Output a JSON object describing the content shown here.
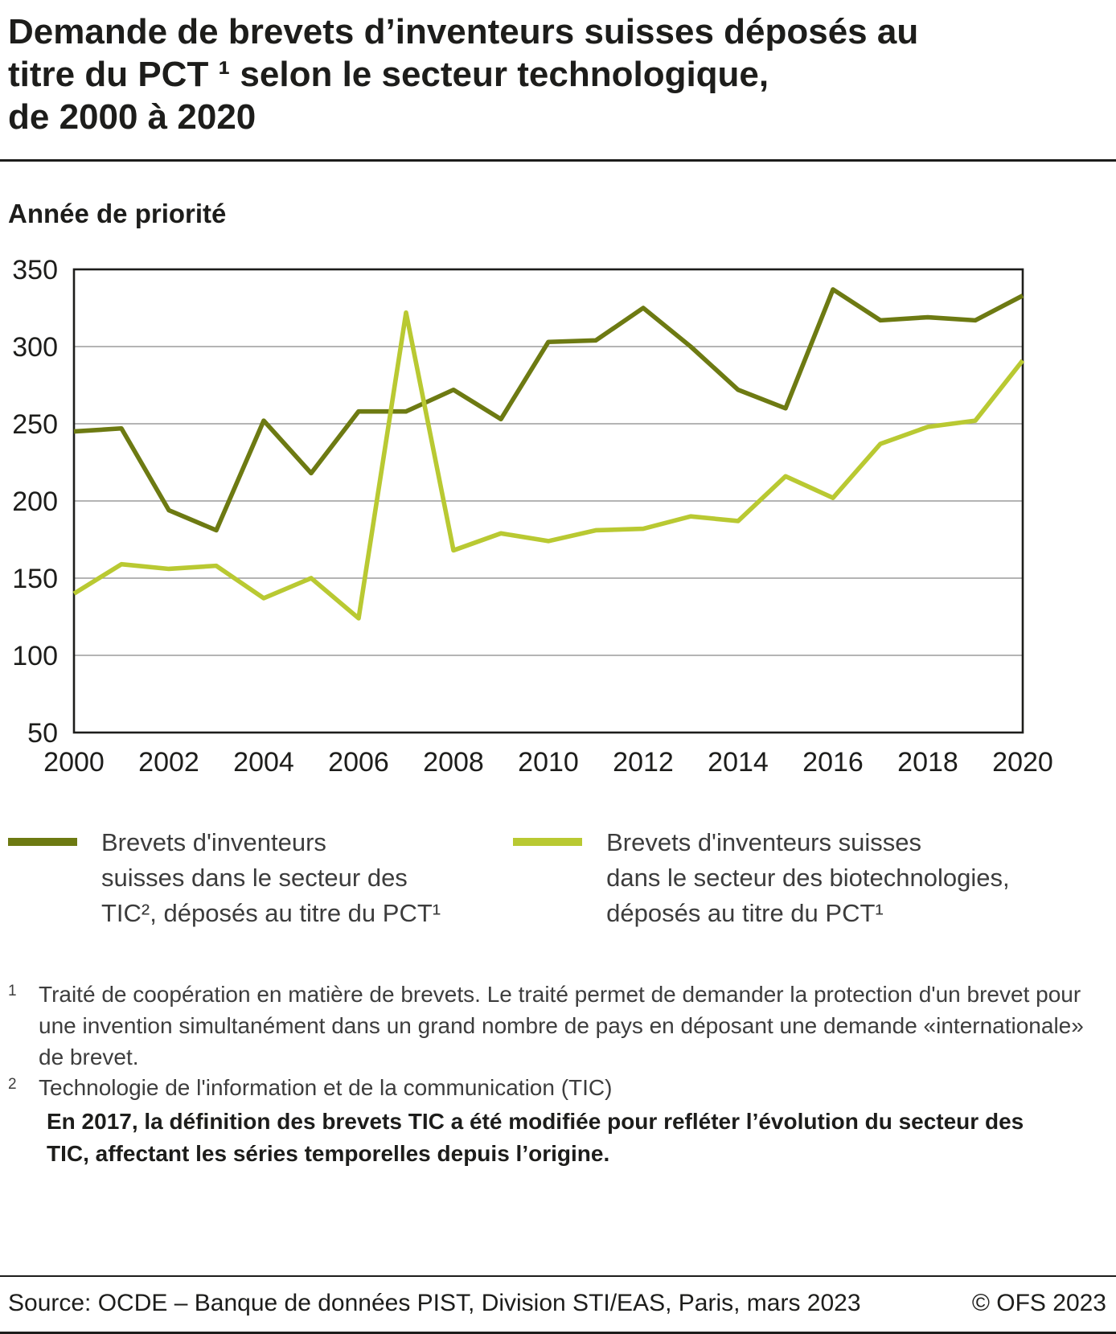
{
  "header": {
    "title": "Demande de brevets d’inventeurs suisses déposés au\ntitre du PCT ¹ selon le secteur technologique,\nde 2000 à 2020"
  },
  "chart_data": {
    "type": "line",
    "axis_title": "Année de priorité",
    "x": [
      2000,
      2001,
      2002,
      2003,
      2004,
      2005,
      2006,
      2007,
      2008,
      2009,
      2010,
      2011,
      2012,
      2013,
      2014,
      2015,
      2016,
      2017,
      2018,
      2019,
      2020
    ],
    "xticks": [
      2000,
      2002,
      2004,
      2006,
      2008,
      2010,
      2012,
      2014,
      2016,
      2018,
      2020
    ],
    "ylim": [
      50,
      350
    ],
    "yticks": [
      50,
      100,
      150,
      200,
      250,
      300,
      350
    ],
    "grid": "horizontal",
    "legend_position": "bottom",
    "series": [
      {
        "name": "Brevets d'inventeurs suisses dans le secteur des TIC², déposés au titre du PCT¹",
        "color": "#6d7a12",
        "values": [
          245,
          247,
          194,
          181,
          252,
          218,
          258,
          258,
          272,
          253,
          303,
          304,
          325,
          300,
          272,
          260,
          337,
          317,
          319,
          317,
          333
        ]
      },
      {
        "name": "Brevets d'inventeurs suisses dans le secteur des biotechnologies, déposés au titre du PCT¹",
        "color": "#b9c932",
        "values": [
          140,
          159,
          156,
          158,
          137,
          150,
          124,
          322,
          168,
          179,
          174,
          181,
          182,
          190,
          187,
          216,
          202,
          237,
          248,
          252,
          291
        ]
      }
    ]
  },
  "legend": {
    "items": [
      {
        "text": "Brevets d'inventeurs\nsuisses dans le secteur des\nTIC², déposés au titre du PCT¹",
        "color": "#6d7a12"
      },
      {
        "text": "Brevets d'inventeurs suisses\ndans le secteur des biotechnologies,\ndéposés au titre du PCT¹",
        "color": "#b9c932"
      }
    ]
  },
  "footnotes": [
    {
      "marker": "1",
      "text": "Traité de coopération en matière de brevets. Le traité permet de demander la protection d'un brevet pour une invention simultanément dans un grand nombre de pays en déposant une demande «internationale» de brevet."
    },
    {
      "marker": "2",
      "text": "Technologie de l'information et de la communication (TIC)"
    }
  ],
  "note_bold": "En 2017, la définition des brevets TIC a été modifiée pour refléter l’évolution du secteur des TIC, affectant les séries temporelles depuis l’origine.",
  "footer": {
    "source": "Source: OCDE – Banque de données PIST, Division STI/EAS, Paris, mars 2023",
    "copyright": "© OFS 2023"
  }
}
